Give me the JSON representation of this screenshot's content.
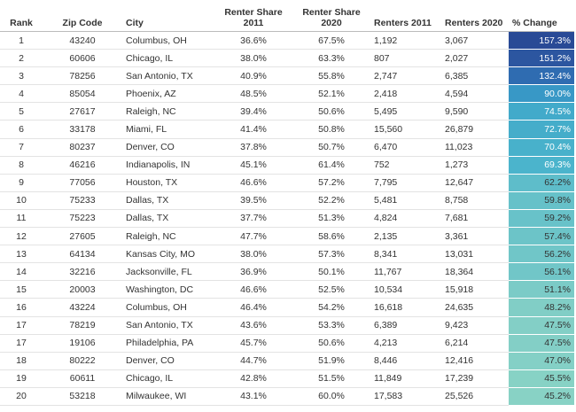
{
  "table": {
    "columns": [
      "Rank",
      "Zip Code",
      "City",
      "Renter Share 2011",
      "Renter Share 2020",
      "Renters 2011",
      "Renters 2020",
      "% Change"
    ],
    "rows": [
      [
        "1",
        "43240",
        "Columbus, OH",
        "36.6%",
        "67.5%",
        "1,192",
        "3,067",
        "157.3%"
      ],
      [
        "2",
        "60606",
        "Chicago, IL",
        "38.0%",
        "63.3%",
        "807",
        "2,027",
        "151.2%"
      ],
      [
        "3",
        "78256",
        "San Antonio, TX",
        "40.9%",
        "55.8%",
        "2,747",
        "6,385",
        "132.4%"
      ],
      [
        "4",
        "85054",
        "Phoenix, AZ",
        "48.5%",
        "52.1%",
        "2,418",
        "4,594",
        "90.0%"
      ],
      [
        "5",
        "27617",
        "Raleigh, NC",
        "39.4%",
        "50.6%",
        "5,495",
        "9,590",
        "74.5%"
      ],
      [
        "6",
        "33178",
        "Miami, FL",
        "41.4%",
        "50.8%",
        "15,560",
        "26,879",
        "72.7%"
      ],
      [
        "7",
        "80237",
        "Denver, CO",
        "37.8%",
        "50.7%",
        "6,470",
        "11,023",
        "70.4%"
      ],
      [
        "8",
        "46216",
        "Indianapolis, IN",
        "45.1%",
        "61.4%",
        "752",
        "1,273",
        "69.3%"
      ],
      [
        "9",
        "77056",
        "Houston, TX",
        "46.6%",
        "57.2%",
        "7,795",
        "12,647",
        "62.2%"
      ],
      [
        "10",
        "75233",
        "Dallas, TX",
        "39.5%",
        "52.2%",
        "5,481",
        "8,758",
        "59.8%"
      ],
      [
        "11",
        "75223",
        "Dallas, TX",
        "37.7%",
        "51.3%",
        "4,824",
        "7,681",
        "59.2%"
      ],
      [
        "12",
        "27605",
        "Raleigh, NC",
        "47.7%",
        "58.6%",
        "2,135",
        "3,361",
        "57.4%"
      ],
      [
        "13",
        "64134",
        "Kansas City, MO",
        "38.0%",
        "57.3%",
        "8,341",
        "13,031",
        "56.2%"
      ],
      [
        "14",
        "32216",
        "Jacksonville, FL",
        "36.9%",
        "50.1%",
        "11,767",
        "18,364",
        "56.1%"
      ],
      [
        "15",
        "20003",
        "Washington, DC",
        "46.6%",
        "52.5%",
        "10,534",
        "15,918",
        "51.1%"
      ],
      [
        "16",
        "43224",
        "Columbus, OH",
        "46.4%",
        "54.2%",
        "16,618",
        "24,635",
        "48.2%"
      ],
      [
        "17",
        "78219",
        "San Antonio, TX",
        "43.6%",
        "53.3%",
        "6,389",
        "9,423",
        "47.5%"
      ],
      [
        "17",
        "19106",
        "Philadelphia, PA",
        "45.7%",
        "50.6%",
        "4,213",
        "6,214",
        "47.5%"
      ],
      [
        "18",
        "80222",
        "Denver, CO",
        "44.7%",
        "51.9%",
        "8,446",
        "12,416",
        "47.0%"
      ],
      [
        "19",
        "60611",
        "Chicago, IL",
        "42.8%",
        "51.5%",
        "11,849",
        "17,239",
        "45.5%"
      ],
      [
        "20",
        "53218",
        "Milwaukee, WI",
        "43.1%",
        "60.0%",
        "17,583",
        "25,526",
        "45.2%"
      ]
    ],
    "change_colors": [
      "#294a96",
      "#2c56a0",
      "#2f6cb1",
      "#3898c6",
      "#42aaca",
      "#45adca",
      "#48b1cb",
      "#4bb4cc",
      "#5ebdca",
      "#66c1c9",
      "#68c2c9",
      "#6cc4c8",
      "#70c6c8",
      "#71c6c8",
      "#7bcbc7",
      "#81cec6",
      "#83cfc6",
      "#83cfc6",
      "#84d0c6",
      "#87d2c5",
      "#88d2c5"
    ],
    "change_text_colors": [
      "#ffffff",
      "#ffffff",
      "#ffffff",
      "#ffffff",
      "#ffffff",
      "#ffffff",
      "#ffffff",
      "#ffffff",
      "#333333",
      "#333333",
      "#333333",
      "#333333",
      "#333333",
      "#333333",
      "#333333",
      "#333333",
      "#333333",
      "#333333",
      "#333333",
      "#333333",
      "#333333"
    ]
  }
}
